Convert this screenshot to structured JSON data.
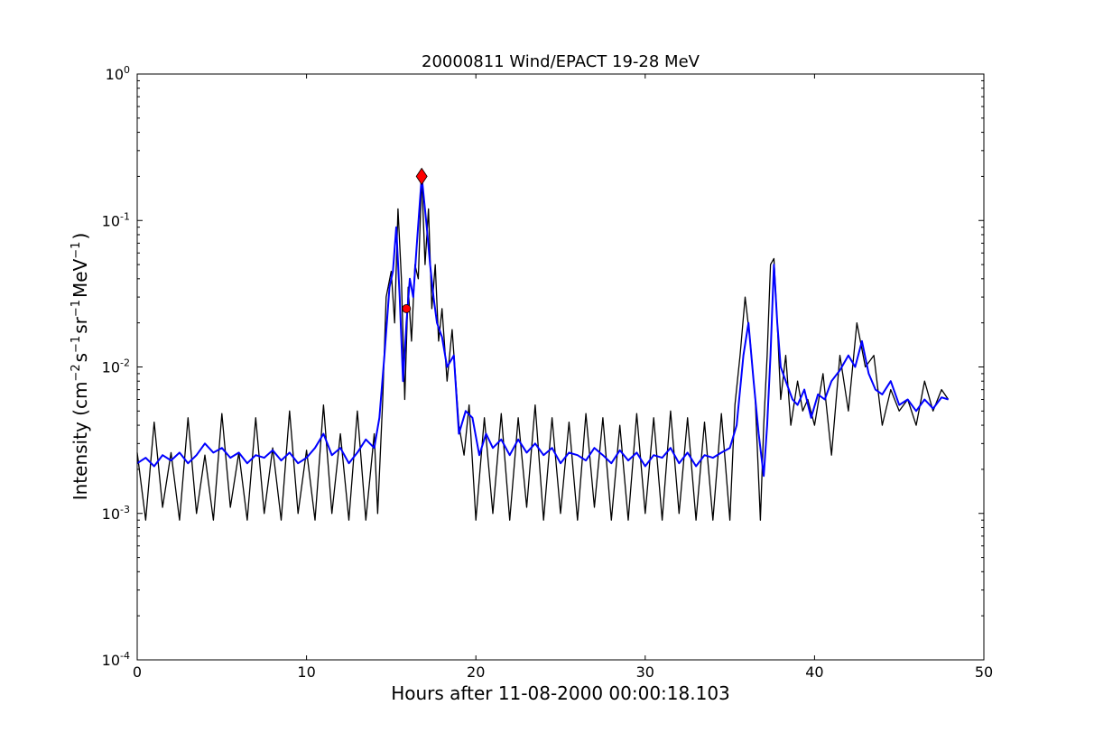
{
  "chart_data": {
    "type": "line",
    "title": "20000811 Wind/EPACT 19-28 MeV",
    "xlabel": "Hours after 11-08-2000 00:00:18.103",
    "ylabel": {
      "prefix": "Intensity (cm",
      "sup1": "−2",
      "mid1": "s",
      "sup2": "−1",
      "mid2": "sr",
      "sup3": "−1",
      "mid3": "MeV",
      "sup4": "−1",
      "suffix": ")"
    },
    "xlim": [
      0,
      50
    ],
    "ylim": [
      0.0001,
      1
    ],
    "yscale": "log",
    "grid": false,
    "x_ticks": [
      {
        "value": 0,
        "label": "0"
      },
      {
        "value": 10,
        "label": "10"
      },
      {
        "value": 20,
        "label": "20"
      },
      {
        "value": 30,
        "label": "30"
      },
      {
        "value": 40,
        "label": "40"
      },
      {
        "value": 50,
        "label": "50"
      }
    ],
    "y_ticks": [
      {
        "value": 1,
        "base": "10",
        "exp": "0"
      },
      {
        "value": 0.1,
        "base": "10",
        "exp": "-1"
      },
      {
        "value": 0.01,
        "base": "10",
        "exp": "-2"
      },
      {
        "value": 0.001,
        "base": "10",
        "exp": "-3"
      },
      {
        "value": 0.0001,
        "base": "10",
        "exp": "-4"
      }
    ],
    "series": [
      {
        "role": "raw",
        "color": "#000000",
        "x": [
          0,
          0.5,
          1,
          1.5,
          2,
          2.5,
          3,
          3.5,
          4,
          4.5,
          5,
          5.5,
          6,
          6.5,
          7,
          7.5,
          8,
          8.5,
          9,
          9.5,
          10,
          10.5,
          11,
          11.5,
          12,
          12.5,
          13,
          13.5,
          14,
          14.2,
          14.5,
          14.7,
          15,
          15.2,
          15.4,
          15.6,
          15.8,
          16,
          16.2,
          16.4,
          16.6,
          16.8,
          17,
          17.2,
          17.4,
          17.6,
          17.8,
          18,
          18.3,
          18.6,
          19,
          19.3,
          19.6,
          20,
          20.5,
          21,
          21.5,
          22,
          22.5,
          23,
          23.5,
          24,
          24.5,
          25,
          25.5,
          26,
          26.5,
          27,
          27.5,
          28,
          28.5,
          29,
          29.5,
          30,
          30.5,
          31,
          31.5,
          32,
          32.5,
          33,
          33.5,
          34,
          34.5,
          35,
          35.3,
          35.6,
          35.9,
          36.2,
          36.5,
          36.8,
          37,
          37.2,
          37.4,
          37.6,
          37.8,
          38,
          38.3,
          38.6,
          39,
          39.3,
          39.6,
          40,
          40.5,
          41,
          41.5,
          42,
          42.5,
          43,
          43.5,
          44,
          44.5,
          45,
          45.5,
          46,
          46.5,
          47,
          47.5,
          47.9
        ],
        "y": [
          0.0026,
          0.0009,
          0.0042,
          0.0011,
          0.0026,
          0.0009,
          0.0045,
          0.001,
          0.0025,
          0.0009,
          0.0048,
          0.0011,
          0.0026,
          0.0009,
          0.0045,
          0.001,
          0.0028,
          0.0009,
          0.005,
          0.001,
          0.0027,
          0.0009,
          0.0055,
          0.001,
          0.0035,
          0.0009,
          0.005,
          0.0009,
          0.0035,
          0.001,
          0.006,
          0.03,
          0.045,
          0.02,
          0.12,
          0.04,
          0.006,
          0.035,
          0.015,
          0.05,
          0.04,
          0.2,
          0.05,
          0.12,
          0.025,
          0.05,
          0.015,
          0.025,
          0.008,
          0.018,
          0.004,
          0.0025,
          0.0055,
          0.0009,
          0.0045,
          0.001,
          0.0048,
          0.0009,
          0.0045,
          0.0011,
          0.0055,
          0.0009,
          0.0045,
          0.001,
          0.0042,
          0.0009,
          0.0048,
          0.0011,
          0.0045,
          0.0009,
          0.004,
          0.0009,
          0.0048,
          0.001,
          0.0045,
          0.0009,
          0.005,
          0.001,
          0.0045,
          0.0009,
          0.0042,
          0.0009,
          0.0048,
          0.0009,
          0.0055,
          0.012,
          0.03,
          0.015,
          0.006,
          0.0009,
          0.004,
          0.012,
          0.05,
          0.055,
          0.02,
          0.006,
          0.012,
          0.004,
          0.008,
          0.005,
          0.006,
          0.004,
          0.009,
          0.0025,
          0.012,
          0.005,
          0.02,
          0.01,
          0.012,
          0.004,
          0.007,
          0.005,
          0.006,
          0.004,
          0.008,
          0.005,
          0.007,
          0.006
        ]
      },
      {
        "role": "smoothed",
        "color": "#0000ff",
        "x": [
          0,
          0.5,
          1,
          1.5,
          2,
          2.5,
          3,
          3.5,
          4,
          4.5,
          5,
          5.5,
          6,
          6.5,
          7,
          7.5,
          8,
          8.5,
          9,
          9.5,
          10,
          10.5,
          11,
          11.5,
          12,
          12.5,
          13,
          13.5,
          14,
          14.3,
          14.6,
          14.9,
          15.1,
          15.3,
          15.5,
          15.7,
          15.9,
          16.1,
          16.3,
          16.5,
          16.8,
          17.1,
          17.3,
          17.5,
          17.7,
          18,
          18.3,
          18.7,
          19,
          19.4,
          19.8,
          20.2,
          20.6,
          21,
          21.5,
          22,
          22.5,
          23,
          23.5,
          24,
          24.5,
          25,
          25.5,
          26,
          26.5,
          27,
          27.5,
          28,
          28.5,
          29,
          29.5,
          30,
          30.5,
          31,
          31.5,
          32,
          32.5,
          33,
          33.5,
          34,
          34.5,
          35,
          35.4,
          35.8,
          36.1,
          36.4,
          36.7,
          37,
          37.2,
          37.4,
          37.6,
          37.8,
          38,
          38.3,
          38.7,
          39,
          39.4,
          39.8,
          40.2,
          40.6,
          41,
          41.5,
          42,
          42.4,
          42.8,
          43.2,
          43.6,
          44,
          44.5,
          45,
          45.5,
          46,
          46.5,
          47,
          47.5,
          47.9
        ],
        "y": [
          0.0022,
          0.0024,
          0.0021,
          0.0025,
          0.0023,
          0.0026,
          0.0022,
          0.0025,
          0.003,
          0.0026,
          0.0028,
          0.0024,
          0.0026,
          0.0022,
          0.0025,
          0.0024,
          0.0027,
          0.0023,
          0.0026,
          0.0022,
          0.0024,
          0.0028,
          0.0035,
          0.0025,
          0.0028,
          0.0022,
          0.0026,
          0.0032,
          0.0028,
          0.0045,
          0.012,
          0.035,
          0.045,
          0.09,
          0.03,
          0.008,
          0.02,
          0.04,
          0.03,
          0.065,
          0.2,
          0.09,
          0.05,
          0.03,
          0.02,
          0.016,
          0.01,
          0.012,
          0.0035,
          0.005,
          0.0045,
          0.0025,
          0.0035,
          0.0028,
          0.0032,
          0.0025,
          0.0032,
          0.0026,
          0.003,
          0.0025,
          0.0028,
          0.0022,
          0.0026,
          0.0025,
          0.0023,
          0.0028,
          0.0025,
          0.0022,
          0.0027,
          0.0023,
          0.0026,
          0.0021,
          0.0025,
          0.0024,
          0.0028,
          0.0022,
          0.0026,
          0.0021,
          0.0025,
          0.0024,
          0.0026,
          0.0028,
          0.004,
          0.012,
          0.02,
          0.008,
          0.0035,
          0.0018,
          0.004,
          0.012,
          0.05,
          0.02,
          0.01,
          0.008,
          0.006,
          0.0055,
          0.007,
          0.0045,
          0.0065,
          0.006,
          0.008,
          0.0095,
          0.012,
          0.01,
          0.015,
          0.009,
          0.007,
          0.0065,
          0.008,
          0.0055,
          0.006,
          0.005,
          0.006,
          0.0052,
          0.0062,
          0.006
        ]
      }
    ],
    "markers": [
      {
        "x": 15.9,
        "y": 0.025,
        "shape": "circle",
        "color": "#ff0000"
      },
      {
        "x": 16.8,
        "y": 0.2,
        "shape": "diamond",
        "color": "#ff0000"
      }
    ]
  }
}
